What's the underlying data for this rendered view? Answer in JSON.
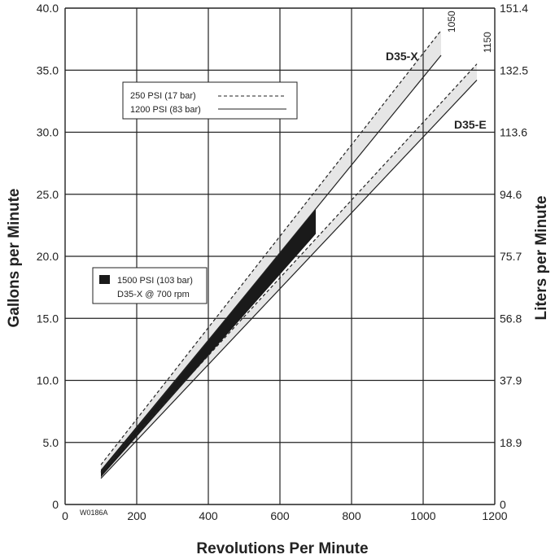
{
  "chart_data": {
    "type": "line",
    "xlabel": "Revolutions Per Minute",
    "ylabel": "Gallons per Minute",
    "y2label": "Liters per Minute",
    "xlim": [
      0,
      1200
    ],
    "ylim": [
      0,
      40
    ],
    "x_ticks": [
      "0",
      "200",
      "400",
      "600",
      "800",
      "1000",
      "1200"
    ],
    "y_ticks": [
      "0",
      "5.0",
      "10.0",
      "15.0",
      "20.0",
      "25.0",
      "30.0",
      "35.0",
      "40.0"
    ],
    "y2_ticks": [
      "0",
      "18.9",
      "37.9",
      "56.8",
      "75.7",
      "94.6",
      "113.6",
      "132.5",
      "151.4"
    ],
    "grid": true,
    "legend_lines": {
      "dashed": "250 PSI (17 bar)",
      "solid": "1200 PSI (83 bar)"
    },
    "legend_fill": {
      "line1": "1500 PSI (103 bar)",
      "line2": "D35-X @ 700 rpm"
    },
    "figure_code": "W0186A",
    "series": [
      {
        "name": "D35-X",
        "max_rpm_label": "1050",
        "dashed_250psi": {
          "x": [
            100,
            1050
          ],
          "y": [
            3.2,
            38.2
          ]
        },
        "solid_1200psi": {
          "x": [
            100,
            1050
          ],
          "y": [
            2.6,
            36.2
          ]
        }
      },
      {
        "name": "D35-E",
        "max_rpm_label": "1150",
        "dashed_250psi": {
          "x": [
            100,
            1150
          ],
          "y": [
            2.6,
            35.5
          ]
        },
        "solid_1200psi": {
          "x": [
            100,
            1150
          ],
          "y": [
            2.1,
            34.2
          ]
        }
      }
    ],
    "filled_region_1500psi": {
      "x": [
        100,
        700,
        700,
        100
      ],
      "y": [
        2.8,
        23.8,
        21.8,
        2.2
      ]
    },
    "colors": {
      "band": "#e6e6e6",
      "fill_1500psi": "#1a1a1a",
      "grid": "#222222"
    }
  }
}
